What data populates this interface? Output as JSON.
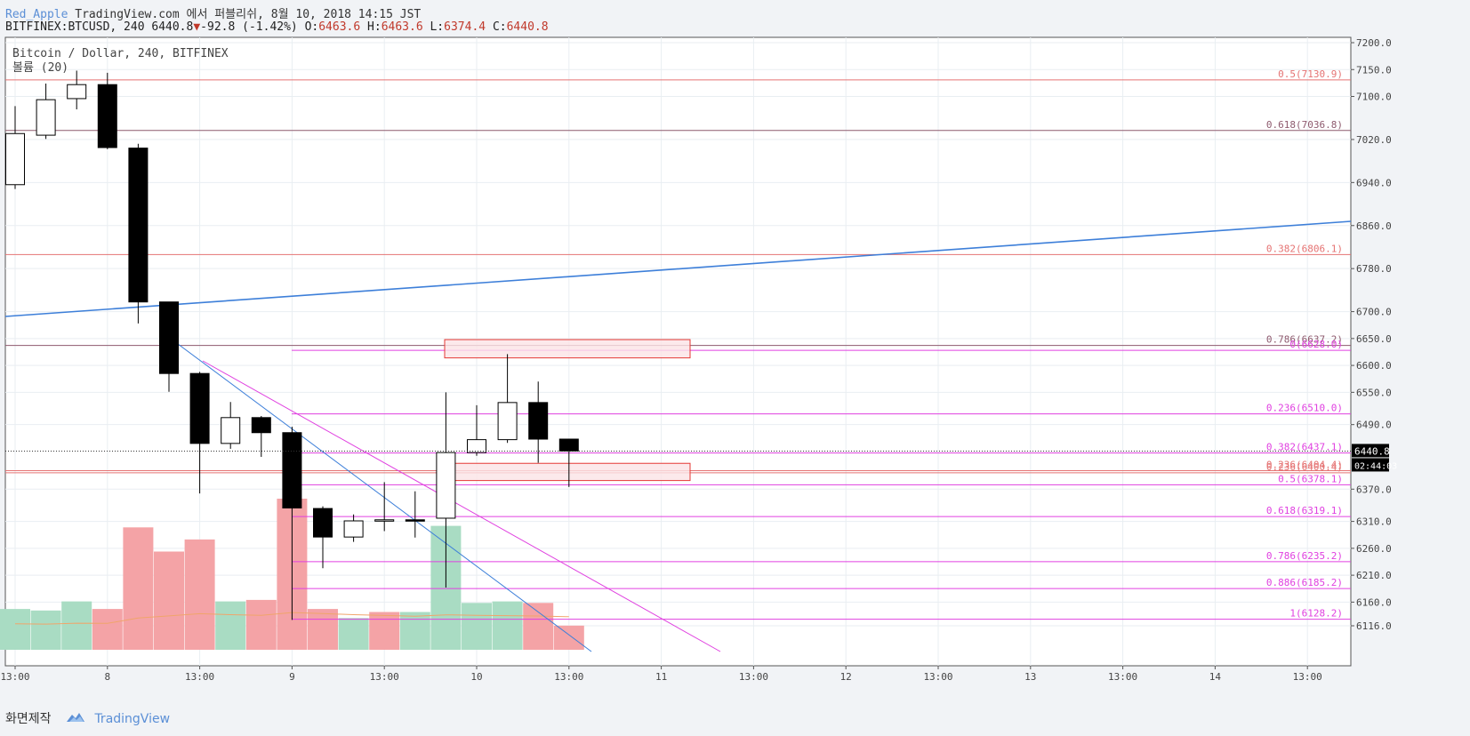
{
  "header": {
    "author": "Red_Apple",
    "published": "TradingView.com 에서 퍼블리쉬, 8월 10, 2018 14:15 JST",
    "symbol": "BITFINEX:BTCUSD, 240",
    "last": "6440.8",
    "change": "-92.8 (-1.42%)",
    "o_label": "O:",
    "o": "6463.6",
    "h_label": "H:",
    "h": "6463.6",
    "l_label": "L:",
    "l": "6374.4",
    "c_label": "C:",
    "c": "6440.8"
  },
  "legend": {
    "series_title": "Bitcoin / Dollar, 240, BITFINEX",
    "volume_title": "볼륨 (20)"
  },
  "footer": {
    "label": "화면제작",
    "brand": "TradingView"
  },
  "chart_data": {
    "type": "candlestick",
    "y_axis": {
      "ticks": [
        "7200.0",
        "7150.0",
        "7100.0",
        "7020.0",
        "6940.0",
        "6860.0",
        "6780.0",
        "6700.0",
        "6650.0",
        "6600.0",
        "6550.0",
        "6490.0",
        "6370.0",
        "6310.0",
        "6260.0",
        "6210.0",
        "6160.0",
        "6116.0"
      ],
      "last_price": "6440.8",
      "countdown": "02:44:03"
    },
    "x_axis": {
      "ticks": [
        "13:00",
        "8",
        "13:00",
        "9",
        "13:00",
        "10",
        "13:00",
        "11",
        "13:00",
        "12",
        "13:00",
        "13",
        "13:00",
        "14",
        "13:00"
      ]
    },
    "candles": [
      {
        "o": 6936,
        "h": 7082,
        "l": 6928,
        "c": 7031
      },
      {
        "o": 7028,
        "h": 7124,
        "l": 7021,
        "c": 7094
      },
      {
        "o": 7096,
        "h": 7148,
        "l": 7076,
        "c": 7122
      },
      {
        "o": 7122,
        "h": 7144,
        "l": 7002,
        "c": 7005
      },
      {
        "o": 7004,
        "h": 7012,
        "l": 6678,
        "c": 6718
      },
      {
        "o": 6718,
        "h": 6718,
        "l": 6551,
        "c": 6585
      },
      {
        "o": 6585,
        "h": 6588,
        "l": 6362,
        "c": 6455
      },
      {
        "o": 6455,
        "h": 6532,
        "l": 6445,
        "c": 6503
      },
      {
        "o": 6503,
        "h": 6506,
        "l": 6430,
        "c": 6475
      },
      {
        "o": 6475,
        "h": 6486,
        "l": 6127,
        "c": 6335
      },
      {
        "o": 6334,
        "h": 6338,
        "l": 6223,
        "c": 6281
      },
      {
        "o": 6281,
        "h": 6323,
        "l": 6272,
        "c": 6311
      },
      {
        "o": 6311,
        "h": 6383,
        "l": 6292,
        "c": 6313
      },
      {
        "o": 6313,
        "h": 6366,
        "l": 6280,
        "c": 6311
      },
      {
        "o": 6316,
        "h": 6550,
        "l": 6187,
        "c": 6438
      },
      {
        "o": 6438,
        "h": 6526,
        "l": 6432,
        "c": 6462
      },
      {
        "o": 6462,
        "h": 6621,
        "l": 6456,
        "c": 6531
      },
      {
        "o": 6531,
        "h": 6570,
        "l": 6419,
        "c": 6463
      },
      {
        "o": 6463,
        "h": 6463,
        "l": 6374,
        "c": 6440.8
      }
    ],
    "volume": [
      {
        "v": 0.27,
        "up": true
      },
      {
        "v": 0.26,
        "up": true
      },
      {
        "v": 0.32,
        "up": true
      },
      {
        "v": 0.27,
        "up": false
      },
      {
        "v": 0.81,
        "up": false
      },
      {
        "v": 0.65,
        "up": false
      },
      {
        "v": 0.73,
        "up": false
      },
      {
        "v": 0.32,
        "up": true
      },
      {
        "v": 0.33,
        "up": false
      },
      {
        "v": 1.0,
        "up": false
      },
      {
        "v": 0.27,
        "up": false
      },
      {
        "v": 0.21,
        "up": true
      },
      {
        "v": 0.25,
        "up": false
      },
      {
        "v": 0.25,
        "up": true
      },
      {
        "v": 0.82,
        "up": true
      },
      {
        "v": 0.31,
        "up": true
      },
      {
        "v": 0.32,
        "up": true
      },
      {
        "v": 0.31,
        "up": false
      },
      {
        "v": 0.16,
        "up": false
      }
    ],
    "fib_red": [
      {
        "label": "0.5(7130.9)",
        "value": 7130.9,
        "color": "#e57373"
      },
      {
        "label": "0.618(7036.8)",
        "value": 7036.8,
        "color": "#8e5a6e"
      },
      {
        "label": "0.382(6806.1)",
        "value": 6806.1,
        "color": "#e57373"
      },
      {
        "label": "0.786(6637.2)",
        "value": 6637.2,
        "color": "#8e5a6e"
      },
      {
        "label": "0.236(6404.4)",
        "value": 6404.4,
        "color": "#e57373"
      },
      {
        "label": "0.236(6400.4)",
        "value": 6400.4,
        "color": "#e57373"
      }
    ],
    "fib_magenta": [
      {
        "label": "0(6628.0)",
        "value": 6628.0
      },
      {
        "label": "0.236(6510.0)",
        "value": 6510.0
      },
      {
        "label": "0.382(6437.1)",
        "value": 6437.1
      },
      {
        "label": "0.5(6378.1)",
        "value": 6378.1
      },
      {
        "label": "0.618(6319.1)",
        "value": 6319.1
      },
      {
        "label": "0.786(6235.2)",
        "value": 6235.2
      },
      {
        "label": "0.886(6185.2)",
        "value": 6185.2
      },
      {
        "label": "1(6128.2)",
        "value": 6128.2
      }
    ],
    "colors": {
      "up_body": "#ffffff",
      "down_body": "#000000",
      "vol_up": "#a9dcc3",
      "vol_down": "#f4a3a6",
      "trend_blue": "#3d7fd9",
      "trend_magenta": "#e040e0",
      "zone_fill": "#fbe4e6",
      "zone_stroke": "#e53935",
      "ma": "#f0a56b"
    }
  }
}
